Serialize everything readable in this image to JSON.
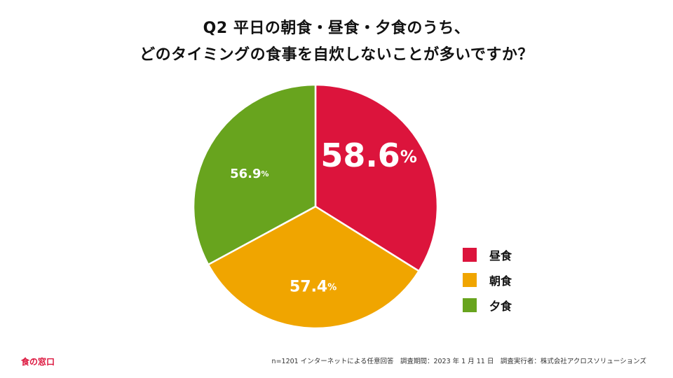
{
  "title": {
    "line1": "Q2 平日の朝食・昼食・夕食のうち、",
    "line2": "どのタイミングの食事を自炊しないことが多いですか？"
  },
  "chart_data": {
    "type": "pie",
    "slices": [
      {
        "label": "昼食",
        "value": 58.6,
        "value_text": "58.6",
        "color": "#DC143C"
      },
      {
        "label": "朝食",
        "value": 57.4,
        "value_text": "57.4",
        "color": "#F0A500"
      },
      {
        "label": "夕食",
        "value": 56.9,
        "value_text": "56.9",
        "color": "#68A41E"
      }
    ],
    "unit": "%",
    "legend_position": "right"
  },
  "logo": "食の窓口",
  "footnote": "n=1201 インターネットによる任意回答　調査期間：2023 年 1 月 11 日　調査実行者：株式会社アクロスソリューションズ"
}
